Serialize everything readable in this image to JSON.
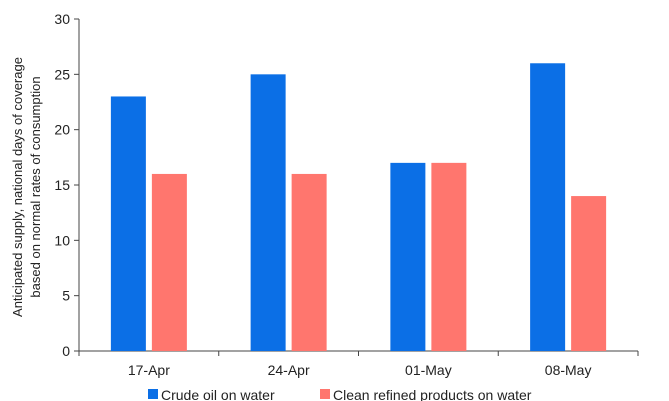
{
  "chart_data": {
    "type": "bar",
    "categories": [
      "17-Apr",
      "24-Apr",
      "01-May",
      "08-May"
    ],
    "series": [
      {
        "name": "Crude oil on water",
        "color": "#0b6fe6",
        "values": [
          23,
          25,
          17,
          26
        ]
      },
      {
        "name": "Clean refined products on water",
        "color": "#ff766e",
        "values": [
          16,
          16,
          17,
          14
        ]
      }
    ],
    "title": "",
    "xlabel": "",
    "ylabel_lines": [
      "Anticipated supply, national days of coverage",
      "based on normal rates of consumption"
    ],
    "ylim": [
      0,
      30
    ],
    "yticks": [
      0,
      5,
      10,
      15,
      20,
      25,
      30
    ],
    "grid": false,
    "legend_position": "bottom"
  }
}
